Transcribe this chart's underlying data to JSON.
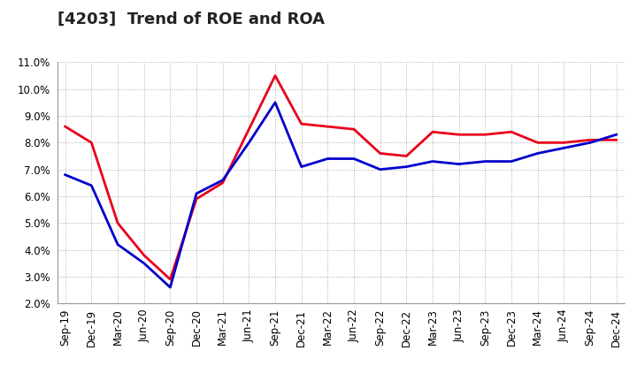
{
  "title": "[4203]  Trend of ROE and ROA",
  "x_labels": [
    "Sep-19",
    "Dec-19",
    "Mar-20",
    "Jun-20",
    "Sep-20",
    "Dec-20",
    "Mar-21",
    "Jun-21",
    "Sep-21",
    "Dec-21",
    "Mar-22",
    "Jun-22",
    "Sep-22",
    "Dec-22",
    "Mar-23",
    "Jun-23",
    "Sep-23",
    "Dec-23",
    "Mar-24",
    "Jun-24",
    "Sep-24",
    "Dec-24"
  ],
  "roe": [
    8.6,
    8.0,
    5.0,
    3.8,
    2.9,
    5.9,
    6.5,
    8.5,
    10.5,
    8.7,
    8.6,
    8.5,
    7.6,
    7.5,
    8.4,
    8.3,
    8.3,
    8.4,
    8.0,
    8.0,
    8.1,
    8.1
  ],
  "roa": [
    6.8,
    6.4,
    4.2,
    3.5,
    2.6,
    6.1,
    6.6,
    8.0,
    9.5,
    7.1,
    7.4,
    7.4,
    7.0,
    7.1,
    7.3,
    7.2,
    7.3,
    7.3,
    7.6,
    7.8,
    8.0,
    8.3
  ],
  "roe_color": "#e8001c",
  "roa_color": "#0000cc",
  "background_color": "#ffffff",
  "grid_color": "#aaaaaa",
  "ylim": [
    2.0,
    11.0
  ],
  "yticks": [
    2.0,
    3.0,
    4.0,
    5.0,
    6.0,
    7.0,
    8.0,
    9.0,
    10.0,
    11.0
  ],
  "line_width": 2.0,
  "title_fontsize": 13,
  "tick_fontsize": 8.5,
  "legend_fontsize": 10
}
